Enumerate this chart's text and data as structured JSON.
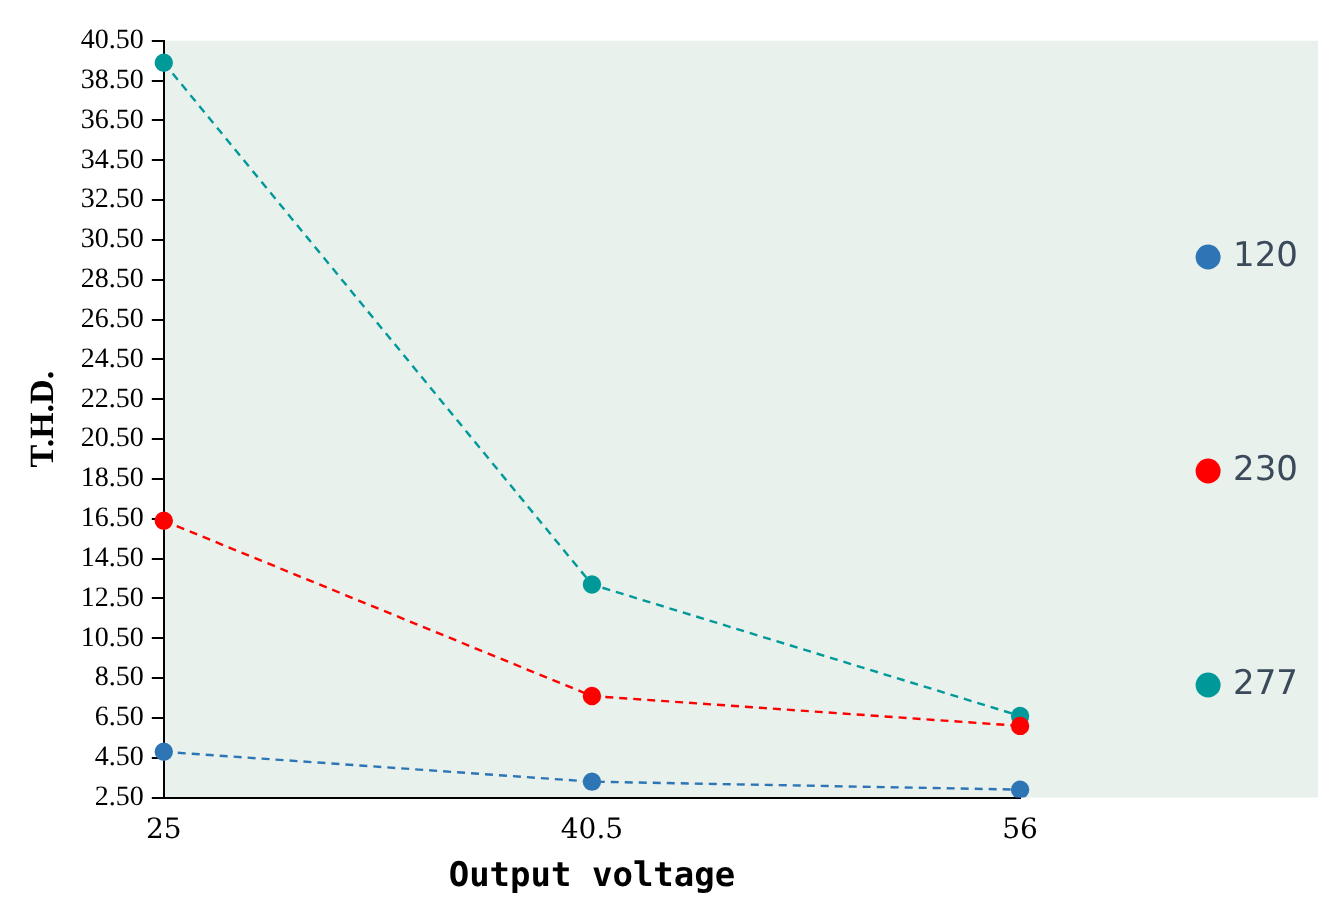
{
  "chart_data": {
    "type": "line",
    "xlabel": "Output voltage",
    "ylabel": "T.H.D.",
    "categories": [
      "25",
      "40.5",
      "56"
    ],
    "series": [
      {
        "name": "120",
        "color": "#2e75b6",
        "values": [
          4.8,
          3.3,
          2.9
        ]
      },
      {
        "name": "230",
        "color": "#ff0000",
        "values": [
          16.4,
          7.6,
          6.1
        ]
      },
      {
        "name": "277",
        "color": "#009999",
        "values": [
          39.4,
          13.2,
          6.6
        ]
      }
    ],
    "ylim": [
      2.5,
      40.5
    ],
    "yticks": [
      {
        "value": 2.5,
        "label": "2.50"
      },
      {
        "value": 4.5,
        "label": "4.50"
      },
      {
        "value": 6.5,
        "label": "6.50"
      },
      {
        "value": 8.5,
        "label": "8.50"
      },
      {
        "value": 10.5,
        "label": "10.50"
      },
      {
        "value": 12.5,
        "label": "12.50"
      },
      {
        "value": 14.5,
        "label": "14.50"
      },
      {
        "value": 16.5,
        "label": "16.50"
      },
      {
        "value": 18.5,
        "label": "18.50"
      },
      {
        "value": 20.5,
        "label": "20.50"
      },
      {
        "value": 22.5,
        "label": "22.50"
      },
      {
        "value": 24.5,
        "label": "24.50"
      },
      {
        "value": 26.5,
        "label": "26.50"
      },
      {
        "value": 28.5,
        "label": "28.50"
      },
      {
        "value": 30.5,
        "label": "30.50"
      },
      {
        "value": 32.5,
        "label": "32.50"
      },
      {
        "value": 34.5,
        "label": "34.50"
      },
      {
        "value": 36.5,
        "label": "36.50"
      },
      {
        "value": 38.5,
        "label": "38.50"
      },
      {
        "value": 40.5,
        "label": "40.50"
      }
    ],
    "grid": false,
    "legend": "right",
    "marker": "circle",
    "line_style": "dashed"
  }
}
